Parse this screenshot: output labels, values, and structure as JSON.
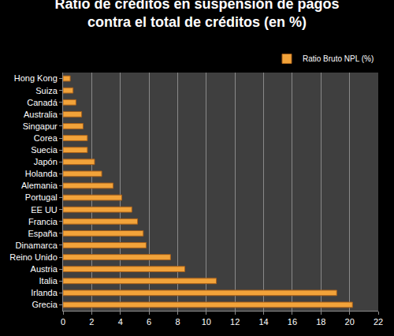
{
  "chart_data": {
    "type": "bar",
    "orientation": "horizontal",
    "title": "Ratio de créditos en suspensión de pagos\ncontra el total de créditos (en %)",
    "categories": [
      "Hong Kong",
      "Suiza",
      "Canadá",
      "Australia",
      "Singapur",
      "Corea",
      "Suecia",
      "Japón",
      "Holanda",
      "Alemania",
      "Portugal",
      "EE UU",
      "Francia",
      "España",
      "Dinamarca",
      "Reino Unido",
      "Austria",
      "Italia",
      "Irlanda",
      "Grecia"
    ],
    "series": [
      {
        "name": "Ratio Bruto NPL (%)",
        "color": "#f2a33a",
        "values": [
          0.5,
          0.7,
          0.9,
          1.3,
          1.4,
          1.7,
          1.7,
          2.2,
          2.7,
          3.5,
          4.1,
          4.8,
          5.2,
          5.6,
          5.8,
          7.5,
          8.5,
          10.7,
          19.1,
          20.2
        ]
      }
    ],
    "xlim": [
      0,
      22
    ],
    "xticks": [
      0,
      2,
      4,
      6,
      8,
      10,
      12,
      14,
      16,
      18,
      20,
      22
    ],
    "grid": true,
    "legend": "top right"
  }
}
